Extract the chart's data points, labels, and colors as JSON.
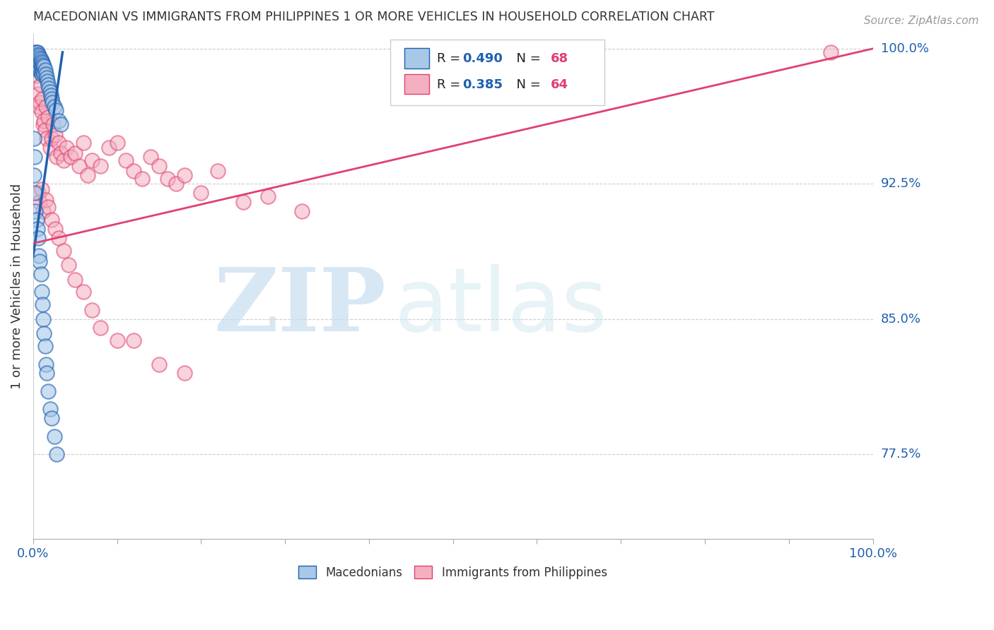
{
  "title": "MACEDONIAN VS IMMIGRANTS FROM PHILIPPINES 1 OR MORE VEHICLES IN HOUSEHOLD CORRELATION CHART",
  "source": "Source: ZipAtlas.com",
  "ylabel": "1 or more Vehicles in Household",
  "ytick_labels": [
    "77.5%",
    "85.0%",
    "92.5%",
    "100.0%"
  ],
  "ytick_values": [
    0.775,
    0.85,
    0.925,
    1.0
  ],
  "legend_blue_label": "Macedonians",
  "legend_pink_label": "Immigrants from Philippines",
  "blue_color": "#a8c8e8",
  "blue_line_color": "#2060b0",
  "pink_color": "#f4b0c0",
  "pink_line_color": "#e04070",
  "blue_scatter_x": [
    0.002,
    0.003,
    0.003,
    0.004,
    0.004,
    0.004,
    0.005,
    0.005,
    0.005,
    0.006,
    0.006,
    0.006,
    0.006,
    0.007,
    0.007,
    0.007,
    0.008,
    0.008,
    0.008,
    0.009,
    0.009,
    0.009,
    0.01,
    0.01,
    0.01,
    0.011,
    0.011,
    0.012,
    0.012,
    0.013,
    0.013,
    0.014,
    0.015,
    0.016,
    0.017,
    0.018,
    0.019,
    0.02,
    0.021,
    0.022,
    0.023,
    0.025,
    0.027,
    0.03,
    0.033,
    0.001,
    0.001,
    0.002,
    0.002,
    0.003,
    0.004,
    0.005,
    0.006,
    0.007,
    0.008,
    0.009,
    0.01,
    0.011,
    0.012,
    0.013,
    0.014,
    0.015,
    0.016,
    0.018,
    0.02,
    0.022,
    0.025,
    0.028
  ],
  "blue_scatter_y": [
    0.998,
    0.996,
    0.994,
    0.998,
    0.996,
    0.992,
    0.998,
    0.995,
    0.991,
    0.997,
    0.994,
    0.991,
    0.988,
    0.996,
    0.993,
    0.99,
    0.995,
    0.992,
    0.988,
    0.994,
    0.991,
    0.987,
    0.993,
    0.99,
    0.986,
    0.992,
    0.988,
    0.991,
    0.987,
    0.99,
    0.986,
    0.988,
    0.986,
    0.984,
    0.982,
    0.98,
    0.978,
    0.976,
    0.974,
    0.972,
    0.97,
    0.968,
    0.966,
    0.96,
    0.958,
    0.95,
    0.93,
    0.94,
    0.92,
    0.91,
    0.905,
    0.9,
    0.895,
    0.885,
    0.882,
    0.875,
    0.865,
    0.858,
    0.85,
    0.842,
    0.835,
    0.825,
    0.82,
    0.81,
    0.8,
    0.795,
    0.785,
    0.775
  ],
  "pink_scatter_x": [
    0.003,
    0.005,
    0.006,
    0.007,
    0.008,
    0.009,
    0.01,
    0.011,
    0.012,
    0.013,
    0.014,
    0.015,
    0.016,
    0.018,
    0.02,
    0.022,
    0.024,
    0.026,
    0.028,
    0.03,
    0.033,
    0.036,
    0.04,
    0.045,
    0.05,
    0.055,
    0.06,
    0.065,
    0.07,
    0.08,
    0.09,
    0.1,
    0.11,
    0.12,
    0.13,
    0.14,
    0.15,
    0.16,
    0.17,
    0.18,
    0.2,
    0.22,
    0.25,
    0.28,
    0.32,
    0.006,
    0.008,
    0.01,
    0.012,
    0.015,
    0.018,
    0.022,
    0.026,
    0.03,
    0.036,
    0.042,
    0.05,
    0.06,
    0.07,
    0.08,
    0.1,
    0.12,
    0.15,
    0.18,
    0.95
  ],
  "pink_scatter_y": [
    0.99,
    0.985,
    0.975,
    0.968,
    0.97,
    0.98,
    0.965,
    0.972,
    0.958,
    0.96,
    0.955,
    0.968,
    0.95,
    0.962,
    0.945,
    0.95,
    0.958,
    0.952,
    0.94,
    0.948,
    0.942,
    0.938,
    0.945,
    0.94,
    0.942,
    0.935,
    0.948,
    0.93,
    0.938,
    0.935,
    0.945,
    0.948,
    0.938,
    0.932,
    0.928,
    0.94,
    0.935,
    0.928,
    0.925,
    0.93,
    0.92,
    0.932,
    0.915,
    0.918,
    0.91,
    0.92,
    0.915,
    0.922,
    0.91,
    0.916,
    0.912,
    0.905,
    0.9,
    0.895,
    0.888,
    0.88,
    0.872,
    0.865,
    0.855,
    0.845,
    0.838,
    0.838,
    0.825,
    0.82,
    0.998
  ],
  "blue_line_x": [
    0.0,
    0.035
  ],
  "blue_line_y": [
    0.885,
    0.998
  ],
  "pink_line_x": [
    0.0,
    1.0
  ],
  "pink_line_y": [
    0.892,
    1.0
  ],
  "xlim": [
    0.0,
    1.0
  ],
  "ylim": [
    0.728,
    1.008
  ],
  "xticks": [
    0.0,
    0.1,
    0.2,
    0.3,
    0.4,
    0.5,
    0.6,
    0.7,
    0.8,
    0.9,
    1.0
  ],
  "watermark_zip": "ZIP",
  "watermark_atlas": "atlas",
  "background_color": "#ffffff",
  "grid_color": "#cccccc"
}
